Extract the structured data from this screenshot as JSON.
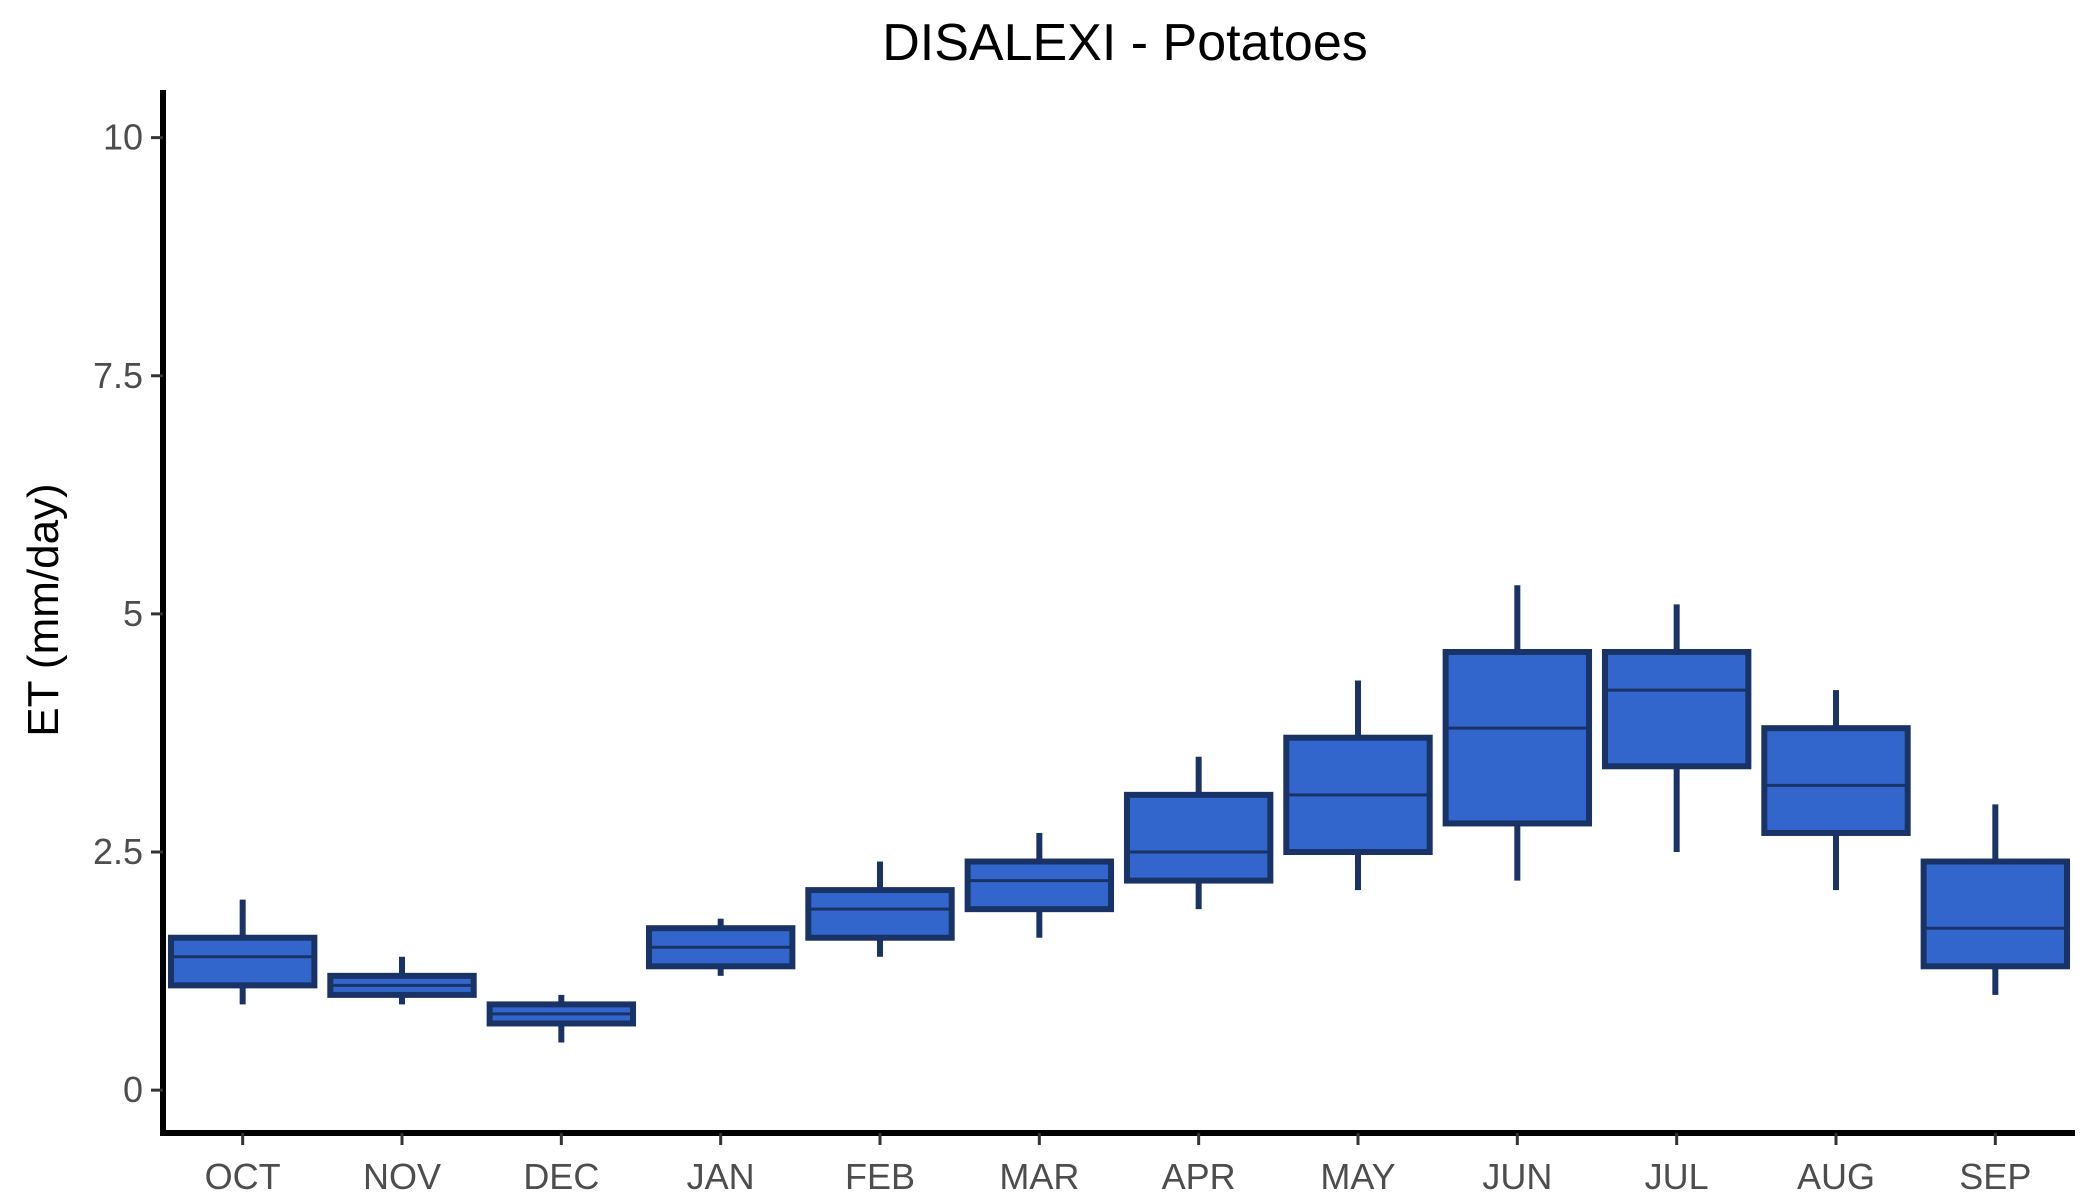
{
  "chart_data": {
    "type": "boxplot",
    "title": "DISALEXI - Potatoes",
    "xlabel": "",
    "ylabel": "ET (mm/day)",
    "ylim": [
      -0.45,
      10.5
    ],
    "yticks": [
      0,
      2.5,
      5,
      7.5,
      10
    ],
    "ytick_labels": [
      "0",
      "2.5",
      "5",
      "7.5",
      "10"
    ],
    "grid": false,
    "legend": "none",
    "categories": [
      "OCT",
      "NOV",
      "DEC",
      "JAN",
      "FEB",
      "MAR",
      "APR",
      "MAY",
      "JUN",
      "JUL",
      "AUG",
      "SEP"
    ],
    "boxes": [
      {
        "min": 0.9,
        "q1": 1.1,
        "median": 1.4,
        "q3": 1.6,
        "max": 2.0
      },
      {
        "min": 0.9,
        "q1": 1.0,
        "median": 1.1,
        "q3": 1.2,
        "max": 1.4
      },
      {
        "min": 0.5,
        "q1": 0.7,
        "median": 0.8,
        "q3": 0.9,
        "max": 1.0
      },
      {
        "min": 1.2,
        "q1": 1.3,
        "median": 1.5,
        "q3": 1.7,
        "max": 1.8
      },
      {
        "min": 1.4,
        "q1": 1.6,
        "median": 1.9,
        "q3": 2.1,
        "max": 2.4
      },
      {
        "min": 1.6,
        "q1": 1.9,
        "median": 2.2,
        "q3": 2.4,
        "max": 2.7
      },
      {
        "min": 1.9,
        "q1": 2.2,
        "median": 2.5,
        "q3": 3.1,
        "max": 3.5
      },
      {
        "min": 2.1,
        "q1": 2.5,
        "median": 3.1,
        "q3": 3.7,
        "max": 4.3
      },
      {
        "min": 2.2,
        "q1": 2.8,
        "median": 3.8,
        "q3": 4.6,
        "max": 5.3
      },
      {
        "min": 2.5,
        "q1": 3.4,
        "median": 4.2,
        "q3": 4.6,
        "max": 5.1
      },
      {
        "min": 2.1,
        "q1": 2.7,
        "median": 3.2,
        "q3": 3.8,
        "max": 4.2
      },
      {
        "min": 1.0,
        "q1": 1.3,
        "median": 1.7,
        "q3": 2.4,
        "max": 3.0
      }
    ],
    "colors": {
      "fill": "#3366cc",
      "stroke": "#1a3366",
      "axis": "#000000",
      "tick_text": "#4d4d4d"
    }
  }
}
